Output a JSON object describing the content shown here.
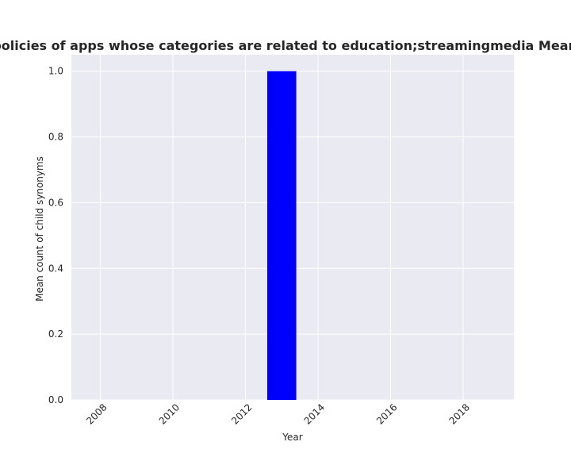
{
  "chart_data": {
    "type": "bar",
    "title": "Mean count of child synonyms in privacy policies of apps whose categories are related to education;streamingmedia Mean count of child synonyms in privacy policies",
    "xlabel": "Year",
    "ylabel": "Mean count of child synonyms",
    "x": [
      2013
    ],
    "values": [
      1.0
    ],
    "bar_width": 0.8,
    "xlim": [
      2007.2,
      2019.4
    ],
    "ylim": [
      0,
      1.05
    ],
    "xticks": [
      2008,
      2010,
      2012,
      2014,
      2016,
      2018
    ],
    "xtick_labels": [
      "2008",
      "2010",
      "2012",
      "2014",
      "2016",
      "2018"
    ],
    "yticks": [
      0.0,
      0.2,
      0.4,
      0.6,
      0.8,
      1.0
    ],
    "ytick_labels": [
      "0.0",
      "0.2",
      "0.4",
      "0.6",
      "0.8",
      "1.0"
    ],
    "grid": true,
    "colors": {
      "bar": "#0000ff",
      "plot_background": "#eaeaf2",
      "grid": "#ffffff",
      "text": "#262626"
    }
  }
}
